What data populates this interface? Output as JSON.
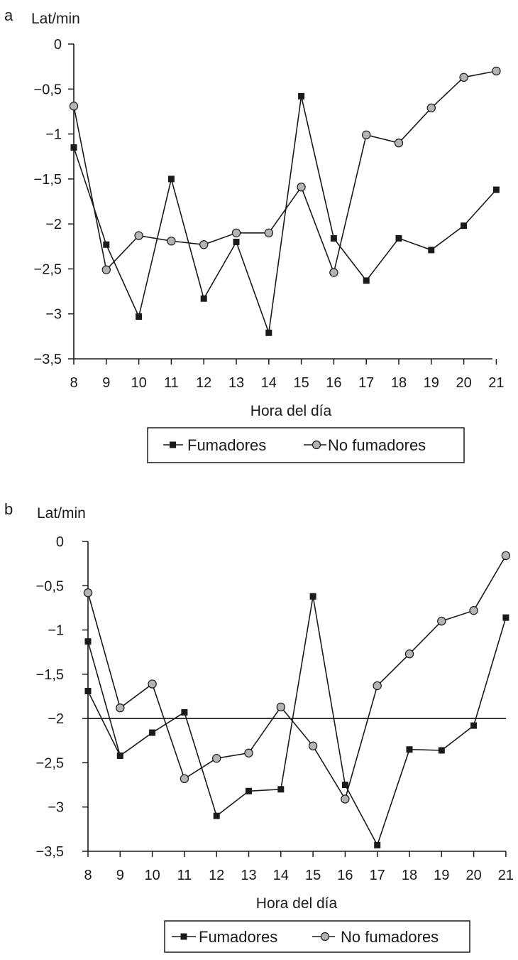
{
  "chart_data": [
    {
      "type": "line",
      "panel_label": "a",
      "ylabel": "Lat/min",
      "xlabel": "Hora del día",
      "categories": [
        "8",
        "9",
        "10",
        "11",
        "12",
        "13",
        "14",
        "15",
        "16",
        "17",
        "18",
        "19",
        "20",
        "21"
      ],
      "y_ticks": [
        "0",
        "-0,5",
        "-1",
        "-1,5",
        "-2",
        "-2,5",
        "-3",
        "-3,5"
      ],
      "ylim": [
        -3.5,
        0
      ],
      "series": [
        {
          "name": "Fumadores",
          "marker": "square",
          "values": [
            -1.15,
            -2.23,
            -3.03,
            -1.5,
            -2.83,
            -2.2,
            -3.21,
            -0.58,
            -2.16,
            -2.63,
            -2.16,
            -2.29,
            -2.02,
            -1.62
          ]
        },
        {
          "name": "No fumadores",
          "marker": "circle",
          "values": [
            -0.69,
            -2.51,
            -2.13,
            -2.19,
            -2.23,
            -2.1,
            -2.1,
            -1.59,
            -2.54,
            -1.01,
            -1.1,
            -0.71,
            -0.37,
            -0.3
          ]
        }
      ],
      "legend_placement": "bottom-center",
      "grid": false
    },
    {
      "type": "line",
      "panel_label": "b",
      "ylabel": "Lat/min",
      "xlabel": "Hora del día",
      "categories": [
        "8",
        "9",
        "10",
        "11",
        "12",
        "13",
        "14",
        "15",
        "16",
        "17",
        "18",
        "19",
        "20",
        "21"
      ],
      "y_ticks": [
        "0",
        "-0,5",
        "-1",
        "-1,5",
        "-2",
        "-2,5",
        "-3",
        "-3,5"
      ],
      "ylim": [
        -3.5,
        0
      ],
      "reference_line_y": -2,
      "series": [
        {
          "name": "Fumadores",
          "marker": "square",
          "values": [
            -1.13,
            -2.42,
            -2.16,
            -1.93,
            -3.1,
            -2.82,
            -2.8,
            -0.62,
            -2.75,
            -3.43,
            -2.35,
            -2.36,
            -2.08,
            -0.86
          ]
        },
        {
          "name": "No fumadores",
          "marker": "circle",
          "values": [
            -0.58,
            -1.88,
            -1.61,
            -2.68,
            -2.45,
            -2.39,
            -1.87,
            -2.31,
            -2.91,
            -1.63,
            -1.27,
            -0.9,
            -0.78,
            -0.16
          ]
        }
      ],
      "extra_points": [
        {
          "series": "Fumadores",
          "x": "8",
          "y": -1.69
        }
      ],
      "legend_placement": "bottom-center",
      "grid": false
    }
  ],
  "colors": {
    "line": "#1a1a1a",
    "square_fill": "#1a1a1a",
    "circle_fill": "#b4b4b4"
  }
}
